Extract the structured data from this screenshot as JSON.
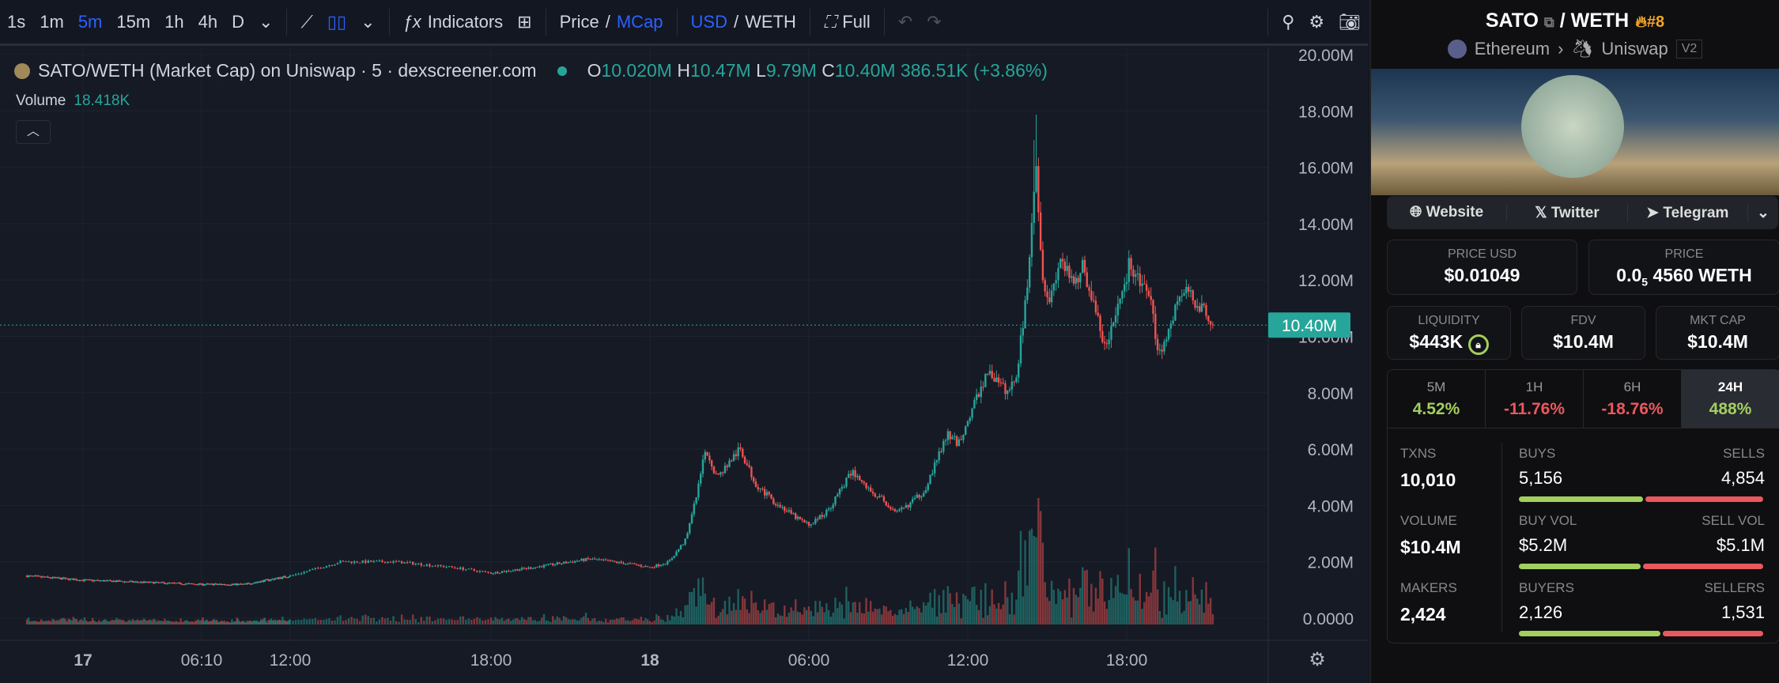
{
  "toolbar": {
    "intervals": [
      "1s",
      "1m",
      "5m",
      "15m",
      "1h",
      "4h",
      "D"
    ],
    "active_interval": "5m",
    "indicators": "Indicators",
    "price_label": "Price",
    "mcap_label": "MCap",
    "usd_label": "USD",
    "weth_label": "WETH",
    "full_label": "Full",
    "accent": "#2962ff"
  },
  "legend": {
    "title": "SATO/WETH (Market Cap) on Uniswap · 5 · dexscreener.com",
    "o": "10.020M",
    "h": "10.47M",
    "l": "9.79M",
    "c": "10.40M",
    "change": "386.51K (+3.86%)",
    "volume_label": "Volume",
    "volume_value": "18.418K"
  },
  "chart_data": {
    "type": "candlestick",
    "y_ticks": [
      "20.00M",
      "18.00M",
      "16.00M",
      "14.00M",
      "12.00M",
      "10.00M",
      "8.00M",
      "6.00M",
      "4.00M",
      "2.00M",
      "0.0000"
    ],
    "ylim": [
      0,
      20
    ],
    "x_ticks": [
      "17",
      "06:10",
      "12:00",
      "18:00",
      "18",
      "06:00",
      "12:00",
      "18:00"
    ],
    "last_value_label": "10.40M",
    "up_color": "#26a69a",
    "down_color": "#ef5350",
    "close_series_M": [
      [
        "16 21:00",
        1.5
      ],
      [
        "17 00:00",
        1.35
      ],
      [
        "17 06:10",
        1.2
      ],
      [
        "17 09:00",
        1.2
      ],
      [
        "17 12:00",
        1.5
      ],
      [
        "17 13:30",
        2.0
      ],
      [
        "17 15:10",
        2.0
      ],
      [
        "17 16:53",
        1.8
      ],
      [
        "17 18:00",
        1.6
      ],
      [
        "17 19:35",
        1.8
      ],
      [
        "17 21:43",
        2.1
      ],
      [
        "17 23:27",
        1.9
      ],
      [
        "18 00:00",
        1.8
      ],
      [
        "18 00:43",
        2.0
      ],
      [
        "18 01:22",
        2.8
      ],
      [
        "18 01:48",
        4.5
      ],
      [
        "18 02:06",
        6.0
      ],
      [
        "18 02:32",
        5.0
      ],
      [
        "18 03:24",
        6.0
      ],
      [
        "18 03:58",
        4.8
      ],
      [
        "18 04:36",
        4.2
      ],
      [
        "18 05:28",
        3.6
      ],
      [
        "18 06:00",
        3.3
      ],
      [
        "18 06:43",
        3.8
      ],
      [
        "18 07:21",
        4.8
      ],
      [
        "18 07:39",
        5.2
      ],
      [
        "18 08:13",
        4.6
      ],
      [
        "18 08:47",
        4.2
      ],
      [
        "18 09:18",
        3.7
      ],
      [
        "18 09:43",
        4.0
      ],
      [
        "18 10:21",
        4.5
      ],
      [
        "18 10:47",
        5.5
      ],
      [
        "18 11:13",
        6.5
      ],
      [
        "18 11:39",
        6.2
      ],
      [
        "18 12:00",
        7.0
      ],
      [
        "18 12:30",
        8.2
      ],
      [
        "18 12:48",
        8.8
      ],
      [
        "18 13:09",
        8.3
      ],
      [
        "18 13:34",
        8.0
      ],
      [
        "18 13:52",
        8.8
      ],
      [
        "18 14:13",
        11.5
      ],
      [
        "18 14:26",
        14.5
      ],
      [
        "18 14:34",
        16.5
      ],
      [
        "18 14:47",
        12.5
      ],
      [
        "18 15:04",
        11.2
      ],
      [
        "18 15:30",
        12.8
      ],
      [
        "18 15:56",
        11.8
      ],
      [
        "18 16:21",
        12.5
      ],
      [
        "18 16:47",
        11.0
      ],
      [
        "18 17:13",
        9.5
      ],
      [
        "18 17:39",
        11.0
      ],
      [
        "18 18:05",
        12.5
      ],
      [
        "18 18:30",
        12.0
      ],
      [
        "18 18:56",
        11.0
      ],
      [
        "18 19:14",
        9.3
      ],
      [
        "18 19:35",
        10.2
      ],
      [
        "18 20:00",
        11.5
      ],
      [
        "18 20:21",
        11.5
      ],
      [
        "18 20:52",
        11.0
      ],
      [
        "18 21:15",
        10.4
      ]
    ]
  },
  "sidebar": {
    "base": "SATO",
    "quote": "WETH",
    "rank": "#8",
    "chain": "Ethereum",
    "dex": "Uniswap",
    "version": "V2",
    "links": [
      "Website",
      "Twitter",
      "Telegram"
    ],
    "price_usd_label": "PRICE USD",
    "price_usd": "$0.01049",
    "price_label": "PRICE",
    "price_prefix": "0.0",
    "price_sub": "5",
    "price_rest": "4560 WETH",
    "liquidity_label": "LIQUIDITY",
    "liquidity": "$443K",
    "fdv_label": "FDV",
    "fdv": "$10.4M",
    "mcap_label": "MKT CAP",
    "mcap": "$10.4M",
    "tabs": [
      {
        "label": "5M",
        "value": "4.52%"
      },
      {
        "label": "1H",
        "value": "-11.76%"
      },
      {
        "label": "6H",
        "value": "-18.76%"
      },
      {
        "label": "24H",
        "value": "488%"
      }
    ],
    "txns_label": "TXNS",
    "txns": "10,010",
    "buys_label": "BUYS",
    "buys": "5,156",
    "sells_label": "SELLS",
    "sells": "4,854",
    "volume_label": "VOLUME",
    "volume": "$10.4M",
    "buy_vol_label": "BUY VOL",
    "buy_vol": "$5.2M",
    "sell_vol_label": "SELL VOL",
    "sell_vol": "$5.1M",
    "makers_label": "MAKERS",
    "makers": "2,424",
    "buyers_label": "BUYERS",
    "buyers": "2,126",
    "sellers_label": "SELLERS",
    "sellers": "1,531"
  }
}
